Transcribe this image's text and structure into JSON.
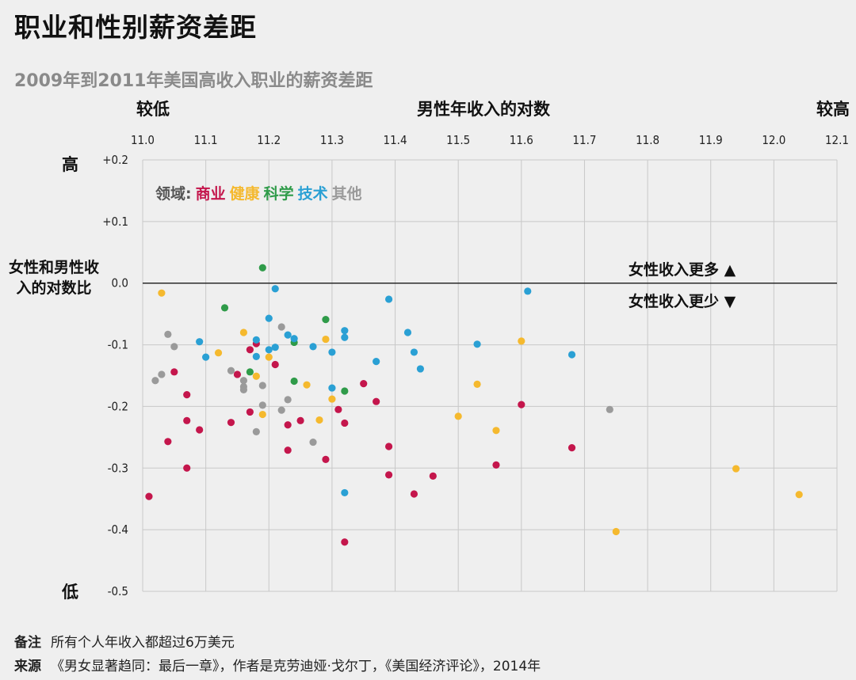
{
  "title": "职业和性别薪资差距",
  "subtitle": "2009年到2011年美国高收入职业的薪资差距",
  "x_axis": {
    "low": "较低",
    "label": "男性年收入的对数",
    "high": "较高"
  },
  "y_axis": {
    "high": "高",
    "label": "女性和男性收入的对数比",
    "low": "低"
  },
  "legend": {
    "prefix": "领域:",
    "items": [
      "商业",
      "健康",
      "科学",
      "技术",
      "其他"
    ]
  },
  "annotations": {
    "more": "女性收入更多",
    "less": "女性收入更少",
    "more_symbol": "▲",
    "less_symbol": "▼"
  },
  "notes": {
    "note_key": "备注",
    "note": "所有个人年收入都超过6万美元",
    "source_key": "来源",
    "source": "《男女显著趋同：最后一章》，作者是克劳迪娅·戈尔丁，《美国经济评论》，2014年"
  },
  "colors": {
    "商业": "#c4164c",
    "健康": "#f5b92e",
    "科学": "#2f9b49",
    "技术": "#2aa0d4",
    "其他": "#9a9a9a",
    "background": "#efefef",
    "subtitle": "#8a8a8a"
  },
  "chart_data": {
    "type": "scatter",
    "xlim": [
      11.0,
      12.1
    ],
    "ylim": [
      -0.5,
      0.2
    ],
    "x_ticks": [
      "11.0",
      "11.1",
      "11.2",
      "11.3",
      "11.4",
      "11.5",
      "11.6",
      "11.7",
      "11.8",
      "11.9",
      "12.0",
      "12.1"
    ],
    "y_ticks": [
      "+0.2",
      "+0.1",
      "0.0",
      "-0.1",
      "-0.2",
      "-0.3",
      "-0.4",
      "-0.5"
    ],
    "grid": true,
    "series": [
      {
        "name": "商业",
        "points": [
          [
            11.01,
            -0.346
          ],
          [
            11.04,
            -0.257
          ],
          [
            11.05,
            -0.144
          ],
          [
            11.07,
            -0.181
          ],
          [
            11.07,
            -0.223
          ],
          [
            11.07,
            -0.3
          ],
          [
            11.09,
            -0.238
          ],
          [
            11.14,
            -0.226
          ],
          [
            11.15,
            -0.148
          ],
          [
            11.17,
            -0.108
          ],
          [
            11.17,
            -0.209
          ],
          [
            11.18,
            -0.098
          ],
          [
            11.21,
            -0.132
          ],
          [
            11.23,
            -0.23
          ],
          [
            11.23,
            -0.271
          ],
          [
            11.25,
            -0.223
          ],
          [
            11.29,
            -0.286
          ],
          [
            11.31,
            -0.205
          ],
          [
            11.32,
            -0.227
          ],
          [
            11.32,
            -0.42
          ],
          [
            11.35,
            -0.163
          ],
          [
            11.37,
            -0.192
          ],
          [
            11.39,
            -0.311
          ],
          [
            11.39,
            -0.265
          ],
          [
            11.43,
            -0.342
          ],
          [
            11.46,
            -0.313
          ],
          [
            11.56,
            -0.295
          ],
          [
            11.6,
            -0.197
          ],
          [
            11.68,
            -0.267
          ]
        ]
      },
      {
        "name": "健康",
        "points": [
          [
            11.03,
            -0.016
          ],
          [
            11.12,
            -0.113
          ],
          [
            11.16,
            -0.08
          ],
          [
            11.18,
            -0.151
          ],
          [
            11.19,
            -0.213
          ],
          [
            11.2,
            -0.12
          ],
          [
            11.26,
            -0.165
          ],
          [
            11.28,
            -0.222
          ],
          [
            11.29,
            -0.091
          ],
          [
            11.3,
            -0.188
          ],
          [
            11.5,
            -0.216
          ],
          [
            11.53,
            -0.164
          ],
          [
            11.56,
            -0.239
          ],
          [
            11.6,
            -0.094
          ],
          [
            11.75,
            -0.403
          ],
          [
            11.94,
            -0.301
          ],
          [
            12.04,
            -0.343
          ]
        ]
      },
      {
        "name": "科学",
        "points": [
          [
            11.13,
            -0.04
          ],
          [
            11.17,
            -0.144
          ],
          [
            11.19,
            0.025
          ],
          [
            11.24,
            -0.096
          ],
          [
            11.24,
            -0.159
          ],
          [
            11.29,
            -0.059
          ],
          [
            11.32,
            -0.175
          ]
        ]
      },
      {
        "name": "技术",
        "points": [
          [
            11.09,
            -0.095
          ],
          [
            11.1,
            -0.12
          ],
          [
            11.18,
            -0.092
          ],
          [
            11.18,
            -0.119
          ],
          [
            11.2,
            -0.057
          ],
          [
            11.2,
            -0.108
          ],
          [
            11.21,
            -0.104
          ],
          [
            11.21,
            -0.009
          ],
          [
            11.23,
            -0.084
          ],
          [
            11.24,
            -0.09
          ],
          [
            11.27,
            -0.103
          ],
          [
            11.3,
            -0.17
          ],
          [
            11.3,
            -0.112
          ],
          [
            11.32,
            -0.077
          ],
          [
            11.32,
            -0.088
          ],
          [
            11.32,
            -0.34
          ],
          [
            11.37,
            -0.127
          ],
          [
            11.39,
            -0.026
          ],
          [
            11.42,
            -0.08
          ],
          [
            11.43,
            -0.112
          ],
          [
            11.44,
            -0.139
          ],
          [
            11.53,
            -0.099
          ],
          [
            11.61,
            -0.013
          ],
          [
            11.68,
            -0.116
          ]
        ]
      },
      {
        "name": "其他",
        "points": [
          [
            11.02,
            -0.158
          ],
          [
            11.03,
            -0.148
          ],
          [
            11.04,
            -0.083
          ],
          [
            11.05,
            -0.103
          ],
          [
            11.14,
            -0.142
          ],
          [
            11.16,
            -0.158
          ],
          [
            11.16,
            -0.168
          ],
          [
            11.16,
            -0.173
          ],
          [
            11.18,
            -0.241
          ],
          [
            11.19,
            -0.166
          ],
          [
            11.19,
            -0.198
          ],
          [
            11.22,
            -0.206
          ],
          [
            11.22,
            -0.071
          ],
          [
            11.23,
            -0.189
          ],
          [
            11.27,
            -0.258
          ],
          [
            11.74,
            -0.205
          ]
        ]
      }
    ]
  }
}
